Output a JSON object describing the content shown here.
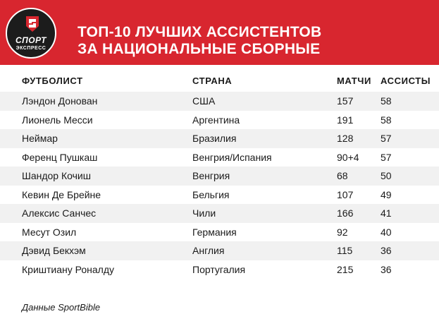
{
  "logo": {
    "top": "СПОРТ",
    "bottom": "ЭКСПРЕСС"
  },
  "title": {
    "line1": "ТОП-10 ЛУЧШИХ АССИСТЕНТОВ",
    "line2": "ЗА НАЦИОНАЛЬНЫЕ СБОРНЫЕ"
  },
  "columns": {
    "player": "ФУТБОЛИСТ",
    "country": "СТРАНА",
    "matches": "МАТЧИ",
    "assists": "АССИСТЫ"
  },
  "rows": [
    {
      "player": "Лэндон Донован",
      "country": "США",
      "matches": "157",
      "assists": "58"
    },
    {
      "player": "Лионель Месси",
      "country": "Аргентина",
      "matches": "191",
      "assists": "58"
    },
    {
      "player": "Неймар",
      "country": "Бразилия",
      "matches": "128",
      "assists": "57"
    },
    {
      "player": "Ференц Пушкаш",
      "country": "Венгрия/Испания",
      "matches": "90+4",
      "assists": "57"
    },
    {
      "player": "Шандор Кочиш",
      "country": "Венгрия",
      "matches": "68",
      "assists": "50"
    },
    {
      "player": "Кевин Де Брейне",
      "country": "Бельгия",
      "matches": "107",
      "assists": "49"
    },
    {
      "player": "Алексис Санчес",
      "country": "Чили",
      "matches": "166",
      "assists": "41"
    },
    {
      "player": "Месут Озил",
      "country": "Германия",
      "matches": "92",
      "assists": "40"
    },
    {
      "player": "Дэвид Бекхэм",
      "country": "Англия",
      "matches": "115",
      "assists": "36"
    },
    {
      "player": "Криштиану Роналду",
      "country": "Португалия",
      "matches": "215",
      "assists": "36"
    }
  ],
  "source": "Данные SportBible",
  "colors": {
    "header_bg": "#d8262f",
    "logo_bg": "#1c1c1c",
    "row_alt": "#f1f1f1"
  }
}
